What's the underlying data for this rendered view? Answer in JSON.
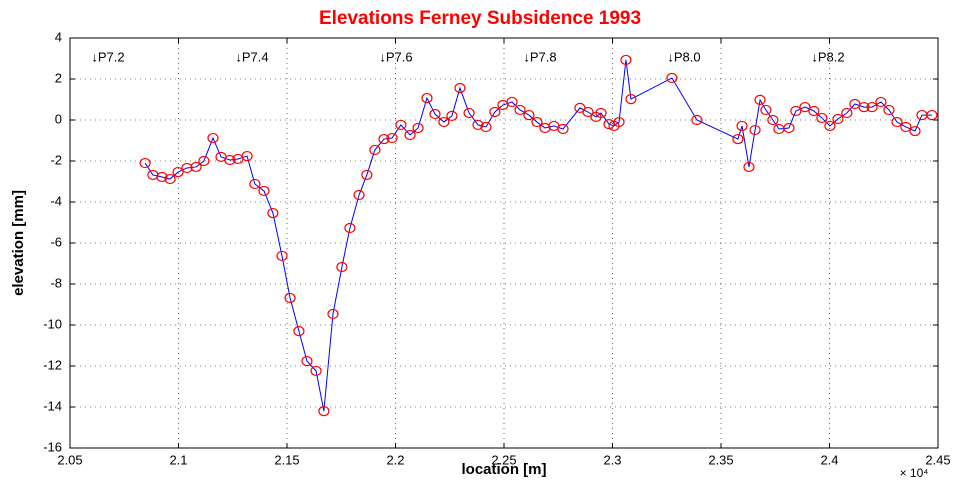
{
  "chart_data": {
    "type": "line",
    "title": "Elevations Ferney Subsidence 1993",
    "xlabel": "location [m]",
    "ylabel": "elevation [mm]",
    "x_scale_label": "× 10⁴",
    "annotations": [
      "↓P7.2",
      "↓P7.4",
      "↓P7.6",
      "↓P7.8",
      "↓P8.0",
      "↓P8.2"
    ],
    "grid": true,
    "xlim": [
      20500,
      24500
    ],
    "ylim": [
      -16,
      4
    ],
    "xticks": [
      {
        "value": 20500,
        "label": "2.05"
      },
      {
        "value": 21000,
        "label": "2.1"
      },
      {
        "value": 21500,
        "label": "2.15"
      },
      {
        "value": 22000,
        "label": "2.2"
      },
      {
        "value": 22500,
        "label": "2.25"
      },
      {
        "value": 23000,
        "label": "2.3"
      },
      {
        "value": 23500,
        "label": "2.35"
      },
      {
        "value": 24000,
        "label": "2.4"
      },
      {
        "value": 24500,
        "label": "2.45"
      }
    ],
    "yticks": [
      -16,
      -14,
      -12,
      -10,
      -8,
      -6,
      -4,
      -2,
      0,
      2,
      4
    ],
    "x": [
      20846,
      20882,
      20924,
      20961,
      20998,
      21039,
      21081,
      21117,
      21159,
      21196,
      21237,
      21274,
      21316,
      21352,
      21394,
      21435,
      21477,
      21514,
      21555,
      21592,
      21634,
      21670,
      21712,
      21753,
      21790,
      21832,
      21868,
      21905,
      21947,
      21984,
      22025,
      22067,
      22104,
      22145,
      22182,
      22223,
      22260,
      22297,
      22339,
      22380,
      22417,
      22458,
      22495,
      22537,
      22574,
      22615,
      22652,
      22689,
      22730,
      22772,
      22850,
      22887,
      22924,
      22947,
      22984,
      23007,
      23030,
      23062,
      23085,
      23274,
      23389,
      23578,
      23597,
      23629,
      23657,
      23680,
      23707,
      23739,
      23767,
      23813,
      23845,
      23887,
      23928,
      23965,
      24002,
      24039,
      24080,
      24117,
      24159,
      24196,
      24237,
      24274,
      24311,
      24352,
      24394,
      24426,
      24472
    ],
    "series": [
      {
        "color": "#0000ff",
        "marker_color": "#ff0000",
        "values": [
          -2.1,
          -2.68,
          -2.78,
          -2.88,
          -2.54,
          -2.34,
          -2.29,
          -2.0,
          -0.88,
          -1.8,
          -1.95,
          -1.9,
          -1.76,
          -3.12,
          -3.46,
          -4.54,
          -6.63,
          -8.68,
          -10.3,
          -11.76,
          -12.24,
          -14.2,
          -9.46,
          -7.17,
          -5.27,
          -3.66,
          -2.68,
          -1.46,
          -0.93,
          -0.88,
          -0.24,
          -0.73,
          -0.39,
          1.07,
          0.29,
          -0.1,
          0.2,
          1.56,
          0.34,
          -0.24,
          -0.34,
          0.39,
          0.73,
          0.88,
          0.49,
          0.24,
          -0.1,
          -0.39,
          -0.29,
          -0.44,
          0.59,
          0.39,
          0.15,
          0.34,
          -0.2,
          -0.29,
          -0.1,
          2.93,
          1.02,
          2.05,
          0.0,
          -0.93,
          -0.29,
          -2.29,
          -0.49,
          0.98,
          0.49,
          0.0,
          -0.44,
          -0.39,
          0.44,
          0.63,
          0.44,
          0.1,
          -0.29,
          0.05,
          0.34,
          0.78,
          0.63,
          0.63,
          0.88,
          0.49,
          -0.1,
          -0.34,
          -0.54,
          0.24,
          0.24
        ]
      }
    ]
  }
}
